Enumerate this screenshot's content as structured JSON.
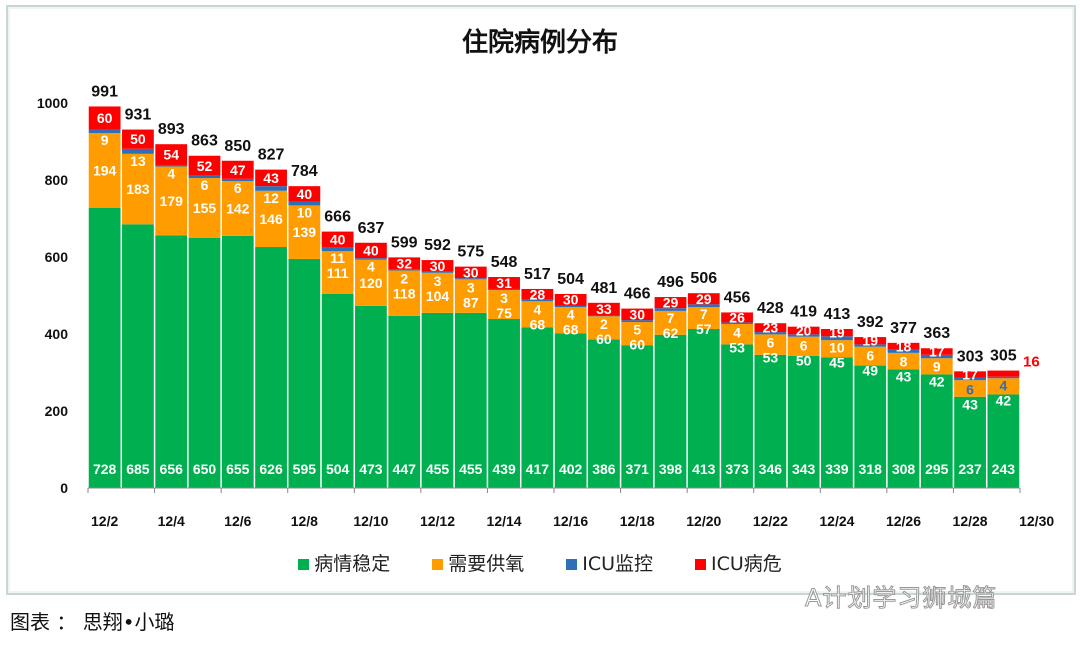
{
  "chart_data": {
    "type": "bar",
    "stacked": true,
    "title": "住院病例分布",
    "categories": [
      "12/2",
      "12/3",
      "12/4",
      "12/5",
      "12/6",
      "12/7",
      "12/8",
      "12/9",
      "12/10",
      "12/11",
      "12/12",
      "12/13",
      "12/14",
      "12/15",
      "12/16",
      "12/17",
      "12/18",
      "12/19",
      "12/20",
      "12/21",
      "12/22",
      "12/23",
      "12/24",
      "12/25",
      "12/26",
      "12/27",
      "12/28",
      "12/29"
    ],
    "x_tick_labels": [
      "12/2",
      "12/4",
      "12/6",
      "12/8",
      "12/10",
      "12/12",
      "12/14",
      "12/16",
      "12/18",
      "12/20",
      "12/22",
      "12/24",
      "12/26",
      "12/28",
      "12/30"
    ],
    "series": [
      {
        "name": "病情稳定",
        "color": "#00b050",
        "values": [
          728,
          685,
          656,
          650,
          655,
          626,
          595,
          504,
          473,
          447,
          455,
          455,
          439,
          417,
          402,
          386,
          371,
          398,
          413,
          373,
          346,
          343,
          339,
          318,
          308,
          295,
          237,
          243
        ]
      },
      {
        "name": "需要供氧",
        "color": "#ff9c00",
        "values": [
          194,
          183,
          179,
          155,
          142,
          146,
          139,
          111,
          120,
          118,
          104,
          87,
          75,
          68,
          68,
          60,
          60,
          62,
          57,
          53,
          53,
          50,
          45,
          49,
          43,
          42,
          43,
          42
        ]
      },
      {
        "name": "ICU监控",
        "color": "#2e6fb6",
        "values": [
          9,
          13,
          4,
          6,
          6,
          12,
          10,
          11,
          4,
          2,
          3,
          3,
          3,
          4,
          4,
          2,
          5,
          7,
          7,
          4,
          6,
          6,
          10,
          6,
          8,
          9,
          6,
          4
        ]
      },
      {
        "name": "ICU病危",
        "color": "#ff0000",
        "values": [
          60,
          50,
          54,
          52,
          47,
          43,
          40,
          40,
          40,
          32,
          30,
          30,
          31,
          28,
          30,
          33,
          30,
          29,
          29,
          26,
          23,
          20,
          19,
          19,
          18,
          17,
          17,
          16
        ]
      }
    ],
    "totals": [
      991,
      931,
      893,
      863,
      850,
      827,
      784,
      666,
      637,
      599,
      592,
      575,
      548,
      517,
      504,
      481,
      466,
      496,
      506,
      456,
      428,
      419,
      413,
      392,
      377,
      363,
      303,
      305
    ],
    "ylim": [
      0,
      1000
    ],
    "y_ticks": [
      0,
      200,
      400,
      600,
      800,
      1000
    ],
    "xlabel": "",
    "ylabel": "",
    "legend": "bottom",
    "grid": false
  },
  "footer": "图表 ： 思翔•小璐",
  "watermark": "A计划学习狮城篇"
}
